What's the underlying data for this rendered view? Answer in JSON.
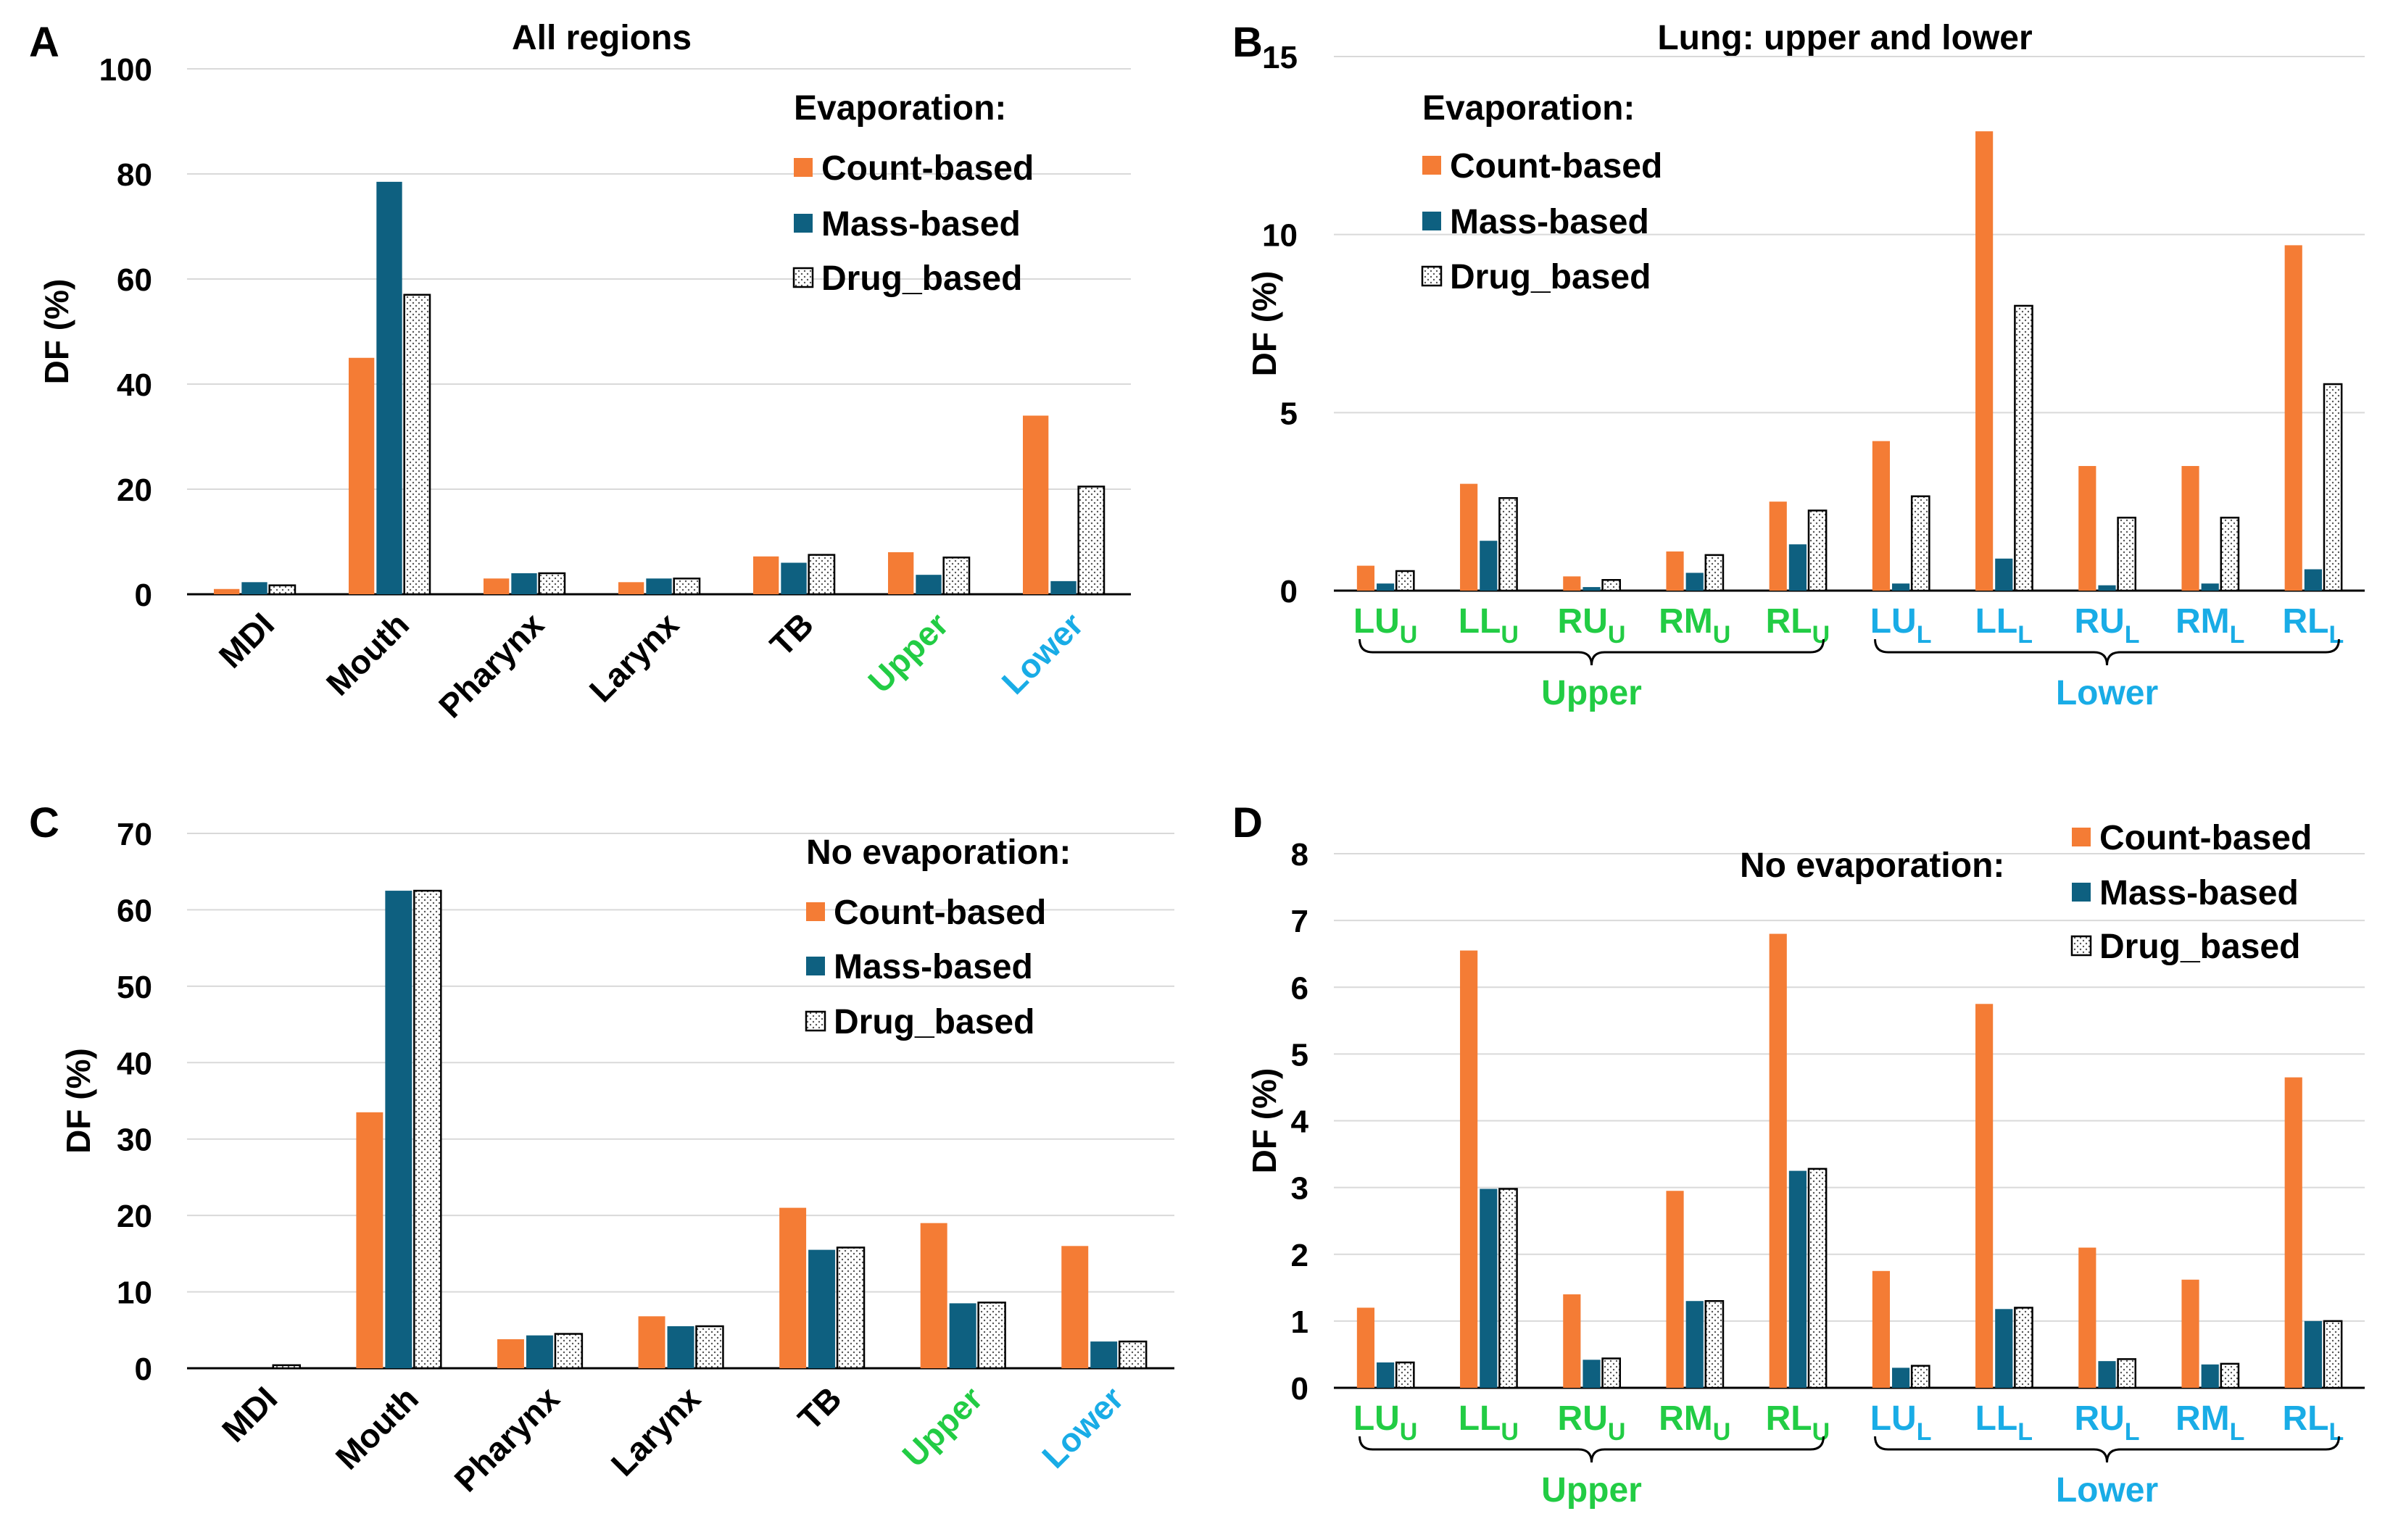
{
  "colors": {
    "count": "#F47C35",
    "mass": "#0E6080",
    "drug_fill": "#ffffff",
    "drug_stroke": "#000000",
    "dot": "#555555",
    "upper": "#22CC44",
    "lower": "#19ACE6",
    "text": "#000000",
    "axis": "#000000",
    "grid": "#d9d9d9"
  },
  "chart_data": [
    {
      "panel": "A",
      "type": "bar",
      "title": "All regions",
      "ylabel": "DF (%)",
      "ylim": [
        0,
        100
      ],
      "ticks": [
        "0",
        "20",
        "40",
        "60",
        "80",
        "100"
      ],
      "legend_title": "Evaporation:",
      "categories": [
        "MDI",
        "Mouth",
        "Pharynx",
        "Larynx",
        "TB",
        "Upper",
        "Lower"
      ],
      "series": [
        {
          "name": "Count-based",
          "values": [
            1.0,
            45.0,
            3.0,
            2.3,
            7.2,
            8.0,
            34.0
          ]
        },
        {
          "name": "Mass-based",
          "values": [
            2.3,
            78.5,
            4.0,
            3.0,
            6.0,
            3.7,
            2.5
          ]
        },
        {
          "name": "Drug_based",
          "values": [
            1.7,
            57.0,
            4.0,
            3.0,
            7.5,
            7.0,
            20.5
          ]
        }
      ]
    },
    {
      "panel": "B",
      "type": "bar",
      "title": "Lung: upper and lower",
      "ylabel": "DF (%)",
      "ylim": [
        0,
        15
      ],
      "ticks": [
        "0",
        "5",
        "10",
        "15"
      ],
      "legend_title": "Evaporation:",
      "categories": [
        {
          "base": "LU",
          "sub": "U"
        },
        {
          "base": "LL",
          "sub": "U"
        },
        {
          "base": "RU",
          "sub": "U"
        },
        {
          "base": "RM",
          "sub": "U"
        },
        {
          "base": "RL",
          "sub": "U"
        },
        {
          "base": "LU",
          "sub": "L"
        },
        {
          "base": "LL",
          "sub": "L"
        },
        {
          "base": "RU",
          "sub": "L"
        },
        {
          "base": "RM",
          "sub": "L"
        },
        {
          "base": "RL",
          "sub": "L"
        }
      ],
      "groups": [
        "Upper",
        "Lower"
      ],
      "series": [
        {
          "name": "Count-based",
          "values": [
            0.7,
            3.0,
            0.4,
            1.1,
            2.5,
            4.2,
            12.9,
            3.5,
            3.5,
            9.7
          ]
        },
        {
          "name": "Mass-based",
          "values": [
            0.2,
            1.4,
            0.1,
            0.5,
            1.3,
            0.2,
            0.9,
            0.15,
            0.2,
            0.6
          ]
        },
        {
          "name": "Drug_based",
          "values": [
            0.55,
            2.6,
            0.3,
            1.0,
            2.25,
            2.65,
            8.0,
            2.05,
            2.05,
            5.8
          ]
        }
      ]
    },
    {
      "panel": "C",
      "type": "bar",
      "title": "",
      "ylabel": "DF (%)",
      "ylim": [
        0,
        70
      ],
      "ticks": [
        "0",
        "10",
        "20",
        "30",
        "40",
        "50",
        "60",
        "70"
      ],
      "legend_title": "No evaporation:",
      "categories": [
        "MDI",
        "Mouth",
        "Pharynx",
        "Larynx",
        "TB",
        "Upper",
        "Lower"
      ],
      "series": [
        {
          "name": "Count-based",
          "values": [
            0.0,
            33.5,
            3.8,
            6.8,
            21.0,
            19.0,
            16.0
          ]
        },
        {
          "name": "Mass-based",
          "values": [
            0.0,
            62.5,
            4.3,
            5.5,
            15.5,
            8.5,
            3.5
          ]
        },
        {
          "name": "Drug_based",
          "values": [
            0.4,
            62.5,
            4.5,
            5.5,
            15.8,
            8.6,
            3.5
          ]
        }
      ]
    },
    {
      "panel": "D",
      "type": "bar",
      "title": "",
      "ylabel": "DF (%)",
      "ylim": [
        0,
        8
      ],
      "ticks": [
        "0",
        "1",
        "2",
        "3",
        "4",
        "5",
        "6",
        "7",
        "8"
      ],
      "legend_title": "No evaporation:",
      "categories": [
        {
          "base": "LU",
          "sub": "U"
        },
        {
          "base": "LL",
          "sub": "U"
        },
        {
          "base": "RU",
          "sub": "U"
        },
        {
          "base": "RM",
          "sub": "U"
        },
        {
          "base": "RL",
          "sub": "U"
        },
        {
          "base": "LU",
          "sub": "L"
        },
        {
          "base": "LL",
          "sub": "L"
        },
        {
          "base": "RU",
          "sub": "L"
        },
        {
          "base": "RM",
          "sub": "L"
        },
        {
          "base": "RL",
          "sub": "L"
        }
      ],
      "groups": [
        "Upper",
        "Lower"
      ],
      "series": [
        {
          "name": "Count-based",
          "values": [
            1.2,
            6.55,
            1.4,
            2.95,
            6.8,
            1.75,
            5.75,
            2.1,
            1.62,
            4.65
          ]
        },
        {
          "name": "Mass-based",
          "values": [
            0.38,
            2.98,
            0.42,
            1.3,
            3.25,
            0.3,
            1.18,
            0.4,
            0.35,
            1.0
          ]
        },
        {
          "name": "Drug_based",
          "values": [
            0.38,
            2.98,
            0.44,
            1.3,
            3.28,
            0.33,
            1.2,
            0.43,
            0.36,
            1.0
          ]
        }
      ]
    }
  ]
}
